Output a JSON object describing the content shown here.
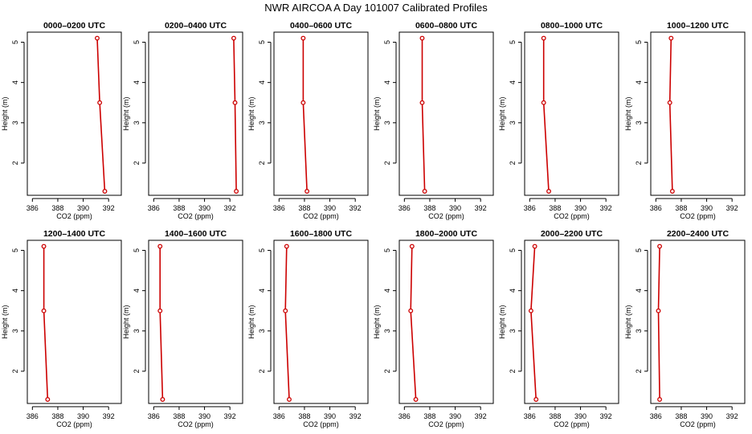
{
  "title": "NWR AIRCOA A  Day 101007  Calibrated Profiles",
  "colors": {
    "profile_line": "#cc0000",
    "marker": "#cc0000",
    "frame": "#000000",
    "background": "#ffffff"
  },
  "chart_data": [
    {
      "type": "line",
      "title": "0000–0200 UTC",
      "xlabel": "CO2 (ppm)",
      "ylabel": "Height (m)",
      "xlim": [
        385.6,
        393
      ],
      "ylim": [
        1.2,
        5.25
      ],
      "x_ticks": [
        386,
        388,
        390,
        392
      ],
      "y_ticks": [
        2,
        3,
        4,
        5
      ],
      "series": [
        {
          "x": [
            391.7,
            391.3,
            391.1
          ],
          "y": [
            1.3,
            3.5,
            5.1
          ]
        }
      ]
    },
    {
      "type": "line",
      "title": "0200–0400 UTC",
      "xlabel": "CO2 (ppm)",
      "ylabel": "Height (m)",
      "xlim": [
        385.6,
        393
      ],
      "ylim": [
        1.2,
        5.25
      ],
      "x_ticks": [
        386,
        388,
        390,
        392
      ],
      "y_ticks": [
        2,
        3,
        4,
        5
      ],
      "series": [
        {
          "x": [
            392.5,
            392.4,
            392.3
          ],
          "y": [
            1.3,
            3.5,
            5.1
          ]
        }
      ]
    },
    {
      "type": "line",
      "title": "0400–0600 UTC",
      "xlabel": "CO2 (ppm)",
      "ylabel": "Height (m)",
      "xlim": [
        385.6,
        393
      ],
      "ylim": [
        1.2,
        5.25
      ],
      "x_ticks": [
        386,
        388,
        390,
        392
      ],
      "y_ticks": [
        2,
        3,
        4,
        5
      ],
      "series": [
        {
          "x": [
            388.2,
            387.9,
            387.9
          ],
          "y": [
            1.3,
            3.5,
            5.1
          ]
        }
      ]
    },
    {
      "type": "line",
      "title": "0600–0800 UTC",
      "xlabel": "CO2 (ppm)",
      "ylabel": "Height (m)",
      "xlim": [
        385.6,
        393
      ],
      "ylim": [
        1.2,
        5.25
      ],
      "x_ticks": [
        386,
        388,
        390,
        392
      ],
      "y_ticks": [
        2,
        3,
        4,
        5
      ],
      "series": [
        {
          "x": [
            387.6,
            387.4,
            387.4
          ],
          "y": [
            1.3,
            3.5,
            5.1
          ]
        }
      ]
    },
    {
      "type": "line",
      "title": "0800–1000 UTC",
      "xlabel": "CO2 (ppm)",
      "ylabel": "Height (m)",
      "xlim": [
        385.6,
        393
      ],
      "ylim": [
        1.2,
        5.25
      ],
      "x_ticks": [
        386,
        388,
        390,
        392
      ],
      "y_ticks": [
        2,
        3,
        4,
        5
      ],
      "series": [
        {
          "x": [
            387.5,
            387.1,
            387.1
          ],
          "y": [
            1.3,
            3.5,
            5.1
          ]
        }
      ]
    },
    {
      "type": "line",
      "title": "1000–1200 UTC",
      "xlabel": "CO2 (ppm)",
      "ylabel": "Height (m)",
      "xlim": [
        385.6,
        393
      ],
      "ylim": [
        1.2,
        5.25
      ],
      "x_ticks": [
        386,
        388,
        390,
        392
      ],
      "y_ticks": [
        2,
        3,
        4,
        5
      ],
      "series": [
        {
          "x": [
            387.3,
            387.1,
            387.2
          ],
          "y": [
            1.3,
            3.5,
            5.1
          ]
        }
      ]
    },
    {
      "type": "line",
      "title": "1200–1400 UTC",
      "xlabel": "CO2 (ppm)",
      "ylabel": "Height (m)",
      "xlim": [
        385.6,
        393
      ],
      "ylim": [
        1.2,
        5.25
      ],
      "x_ticks": [
        386,
        388,
        390,
        392
      ],
      "y_ticks": [
        2,
        3,
        4,
        5
      ],
      "series": [
        {
          "x": [
            387.2,
            386.9,
            386.9
          ],
          "y": [
            1.3,
            3.5,
            5.1
          ]
        }
      ]
    },
    {
      "type": "line",
      "title": "1400–1600 UTC",
      "xlabel": "CO2 (ppm)",
      "ylabel": "Height (m)",
      "xlim": [
        385.6,
        393
      ],
      "ylim": [
        1.2,
        5.25
      ],
      "x_ticks": [
        386,
        388,
        390,
        392
      ],
      "y_ticks": [
        2,
        3,
        4,
        5
      ],
      "series": [
        {
          "x": [
            386.7,
            386.5,
            386.5
          ],
          "y": [
            1.3,
            3.5,
            5.1
          ]
        }
      ]
    },
    {
      "type": "line",
      "title": "1600–1800 UTC",
      "xlabel": "CO2 (ppm)",
      "ylabel": "Height (m)",
      "xlim": [
        385.6,
        393
      ],
      "ylim": [
        1.2,
        5.25
      ],
      "x_ticks": [
        386,
        388,
        390,
        392
      ],
      "y_ticks": [
        2,
        3,
        4,
        5
      ],
      "series": [
        {
          "x": [
            386.8,
            386.5,
            386.6
          ],
          "y": [
            1.3,
            3.5,
            5.1
          ]
        }
      ]
    },
    {
      "type": "line",
      "title": "1800–2000 UTC",
      "xlabel": "CO2 (ppm)",
      "ylabel": "Height (m)",
      "xlim": [
        385.6,
        393
      ],
      "ylim": [
        1.2,
        5.25
      ],
      "x_ticks": [
        386,
        388,
        390,
        392
      ],
      "y_ticks": [
        2,
        3,
        4,
        5
      ],
      "series": [
        {
          "x": [
            386.9,
            386.5,
            386.6
          ],
          "y": [
            1.3,
            3.5,
            5.1
          ]
        }
      ]
    },
    {
      "type": "line",
      "title": "2000–2200 UTC",
      "xlabel": "CO2 (ppm)",
      "ylabel": "Height (m)",
      "xlim": [
        385.6,
        393
      ],
      "ylim": [
        1.2,
        5.25
      ],
      "x_ticks": [
        386,
        388,
        390,
        392
      ],
      "y_ticks": [
        2,
        3,
        4,
        5
      ],
      "series": [
        {
          "x": [
            386.5,
            386.1,
            386.4
          ],
          "y": [
            1.3,
            3.5,
            5.1
          ]
        }
      ]
    },
    {
      "type": "line",
      "title": "2200–2400 UTC",
      "xlabel": "CO2 (ppm)",
      "ylabel": "Height (m)",
      "xlim": [
        385.6,
        393
      ],
      "ylim": [
        1.2,
        5.25
      ],
      "x_ticks": [
        386,
        388,
        390,
        392
      ],
      "y_ticks": [
        2,
        3,
        4,
        5
      ],
      "series": [
        {
          "x": [
            386.3,
            386.2,
            386.3
          ],
          "y": [
            1.3,
            3.5,
            5.1
          ]
        }
      ]
    }
  ]
}
